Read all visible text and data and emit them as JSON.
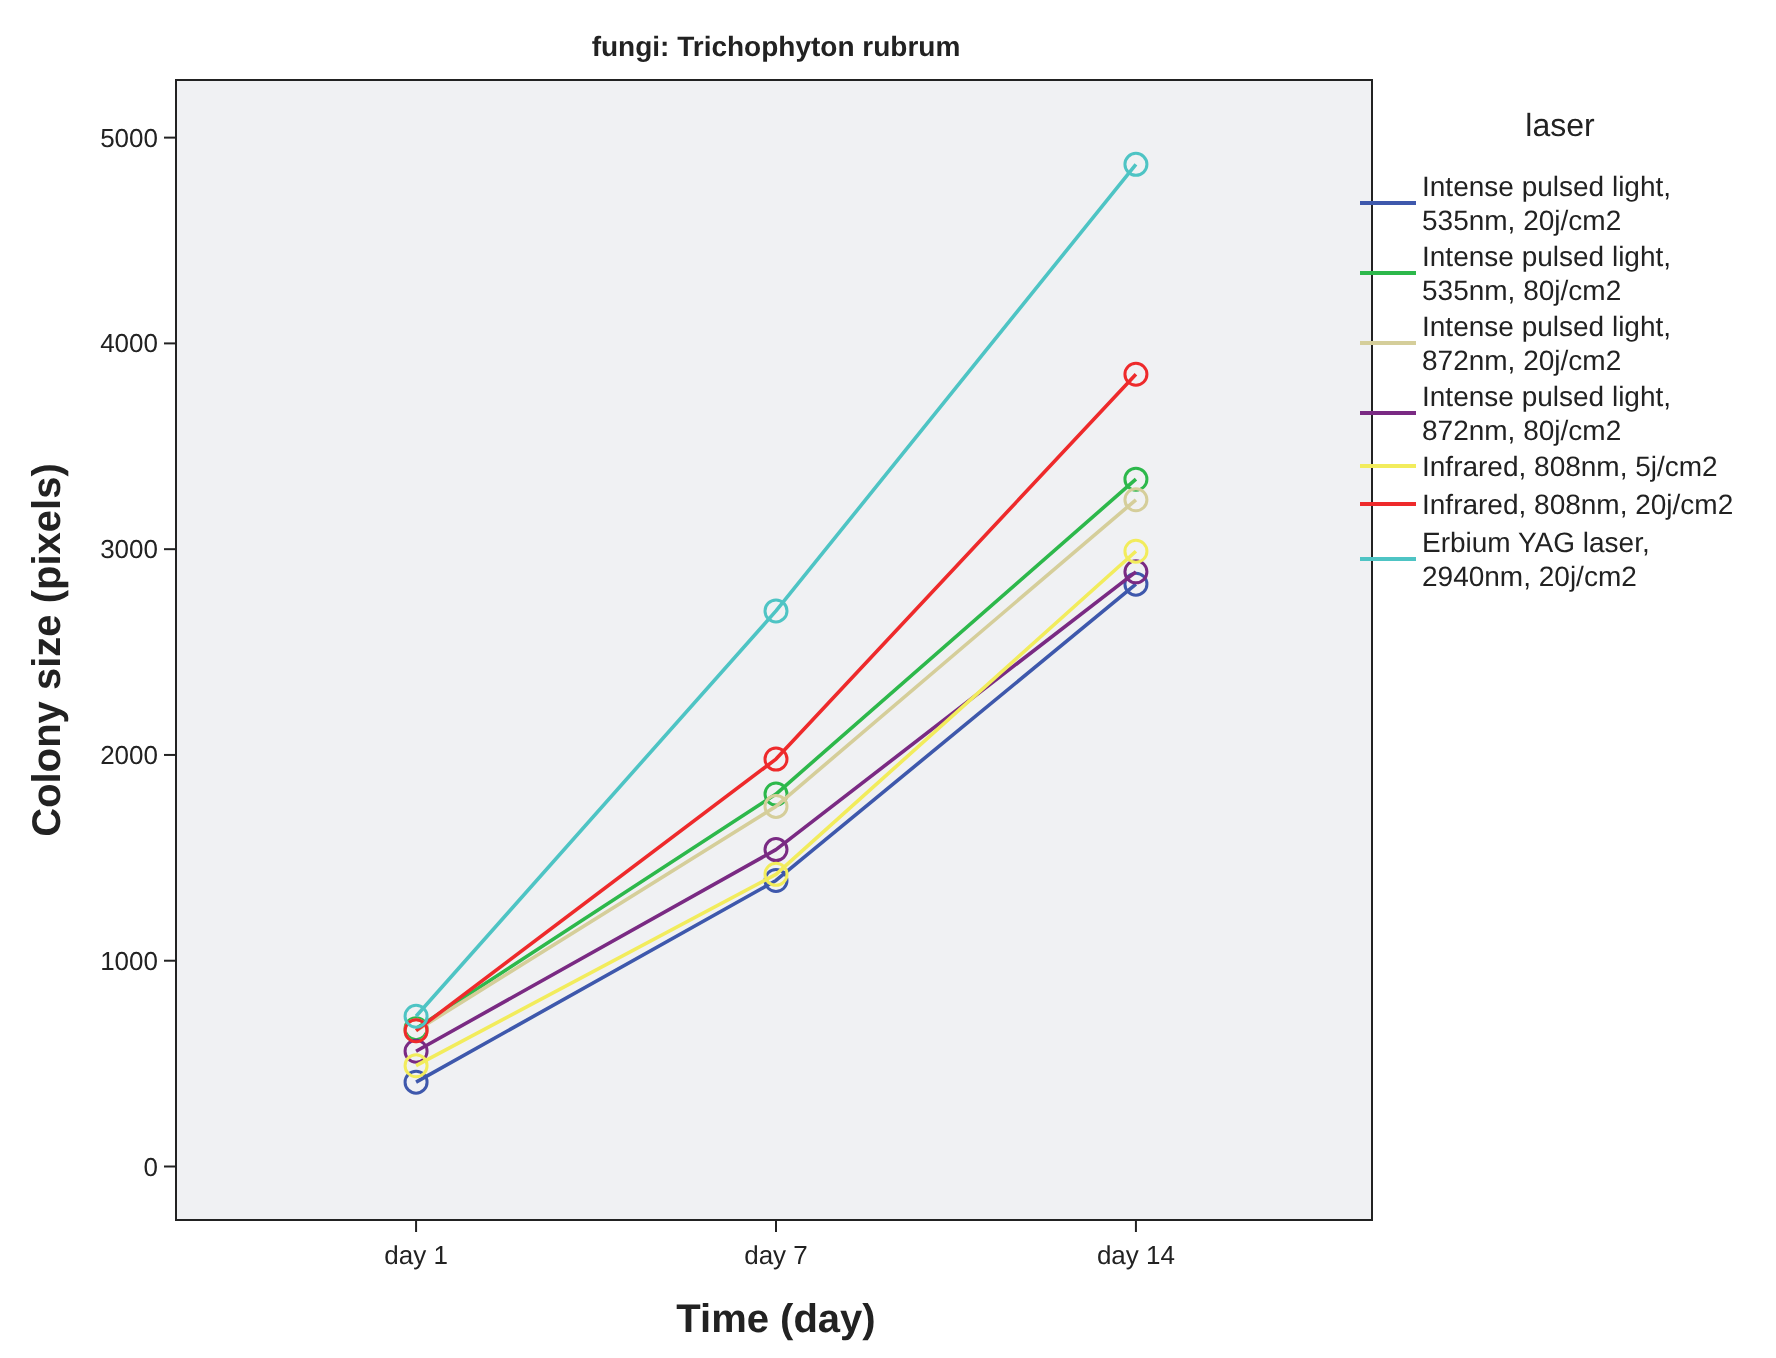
{
  "chart_data": {
    "type": "line",
    "title": "fungi: Trichophyton rubrum",
    "xlabel": "Time (day)",
    "ylabel": "Colony size (pixels)",
    "legend_title": "laser",
    "legend": "right",
    "marker": "circle",
    "grid": false,
    "categories": [
      "day 1",
      "day 7",
      "day 14"
    ],
    "ylim": [
      -260,
      5280
    ],
    "yticks": [
      0,
      1000,
      2000,
      3000,
      4000,
      5000
    ],
    "series": [
      {
        "name": "Intense pulsed light, 535nm, 20j/cm2",
        "color": "#3e58ac",
        "values": [
          410,
          1390,
          2830
        ]
      },
      {
        "name": "Intense pulsed light, 535nm, 80j/cm2",
        "color": "#2db84b",
        "values": [
          670,
          1810,
          3340
        ]
      },
      {
        "name": "Intense pulsed light, 872nm, 20j/cm2",
        "color": "#d5ce9a",
        "values": [
          660,
          1750,
          3240
        ]
      },
      {
        "name": "Intense pulsed light, 872nm, 80j/cm2",
        "color": "#7a2a83",
        "values": [
          560,
          1540,
          2890
        ]
      },
      {
        "name": "Infrared, 808nm, 5j/cm2",
        "color": "#f2ec5c",
        "values": [
          490,
          1420,
          2990
        ]
      },
      {
        "name": "Infrared, 808nm, 20j/cm2",
        "color": "#ee2a2b",
        "values": [
          660,
          1980,
          3850
        ]
      },
      {
        "name": "Erbium YAG laser, 2940nm, 20j/cm2",
        "color": "#4ec4c4",
        "values": [
          730,
          2700,
          4870
        ]
      }
    ]
  }
}
